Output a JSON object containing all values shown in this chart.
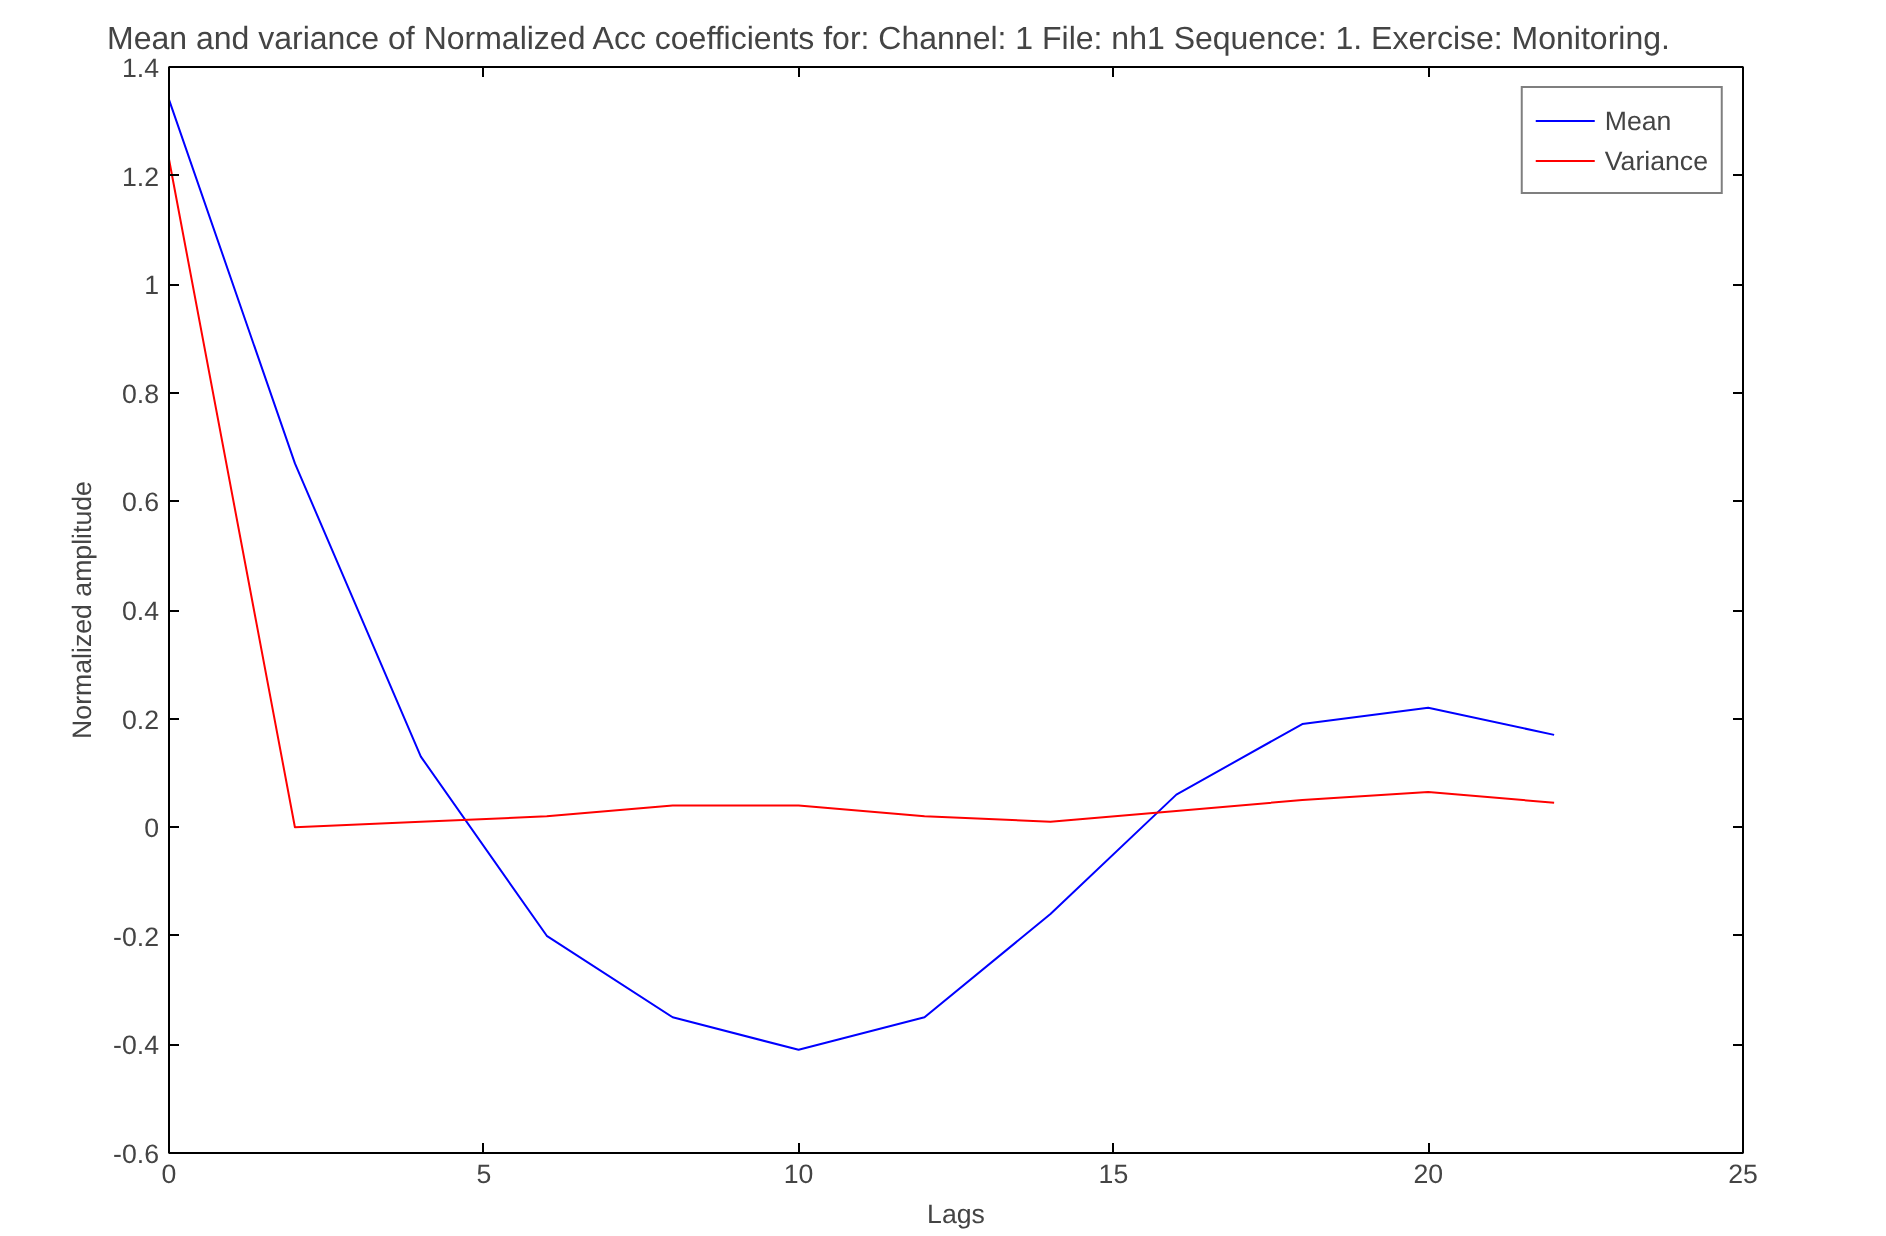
{
  "chart_data": {
    "type": "line",
    "title": "Mean and variance of Normalized Acc coefficients for: Channel: 1      File: nh1      Sequence: 1.      Exercise: Monitoring.",
    "xlabel": "Lags",
    "ylabel": "Normalized amplitude",
    "x": [
      0,
      2,
      4,
      6,
      8,
      10,
      12,
      14,
      16,
      18,
      20,
      22
    ],
    "series": [
      {
        "name": "Mean",
        "color": "#0000ff",
        "values": [
          1.34,
          0.67,
          0.13,
          -0.2,
          -0.35,
          -0.41,
          -0.35,
          -0.16,
          0.06,
          0.19,
          0.22,
          0.17
        ]
      },
      {
        "name": "Variance",
        "color": "#ff0000",
        "values": [
          1.23,
          0.0,
          0.01,
          0.02,
          0.04,
          0.04,
          0.02,
          0.01,
          0.03,
          0.05,
          0.065,
          0.045
        ]
      }
    ],
    "xlim": [
      0,
      25
    ],
    "xticks": [
      0,
      5,
      10,
      15,
      20,
      25
    ],
    "ylim": [
      -0.6,
      1.4
    ],
    "yticks": [
      -0.6,
      -0.4,
      -0.2,
      0,
      0.2,
      0.4,
      0.6,
      0.8,
      1,
      1.2,
      1.4
    ],
    "grid": false,
    "legend": "top right",
    "line_style": "solid",
    "marker": "none"
  }
}
